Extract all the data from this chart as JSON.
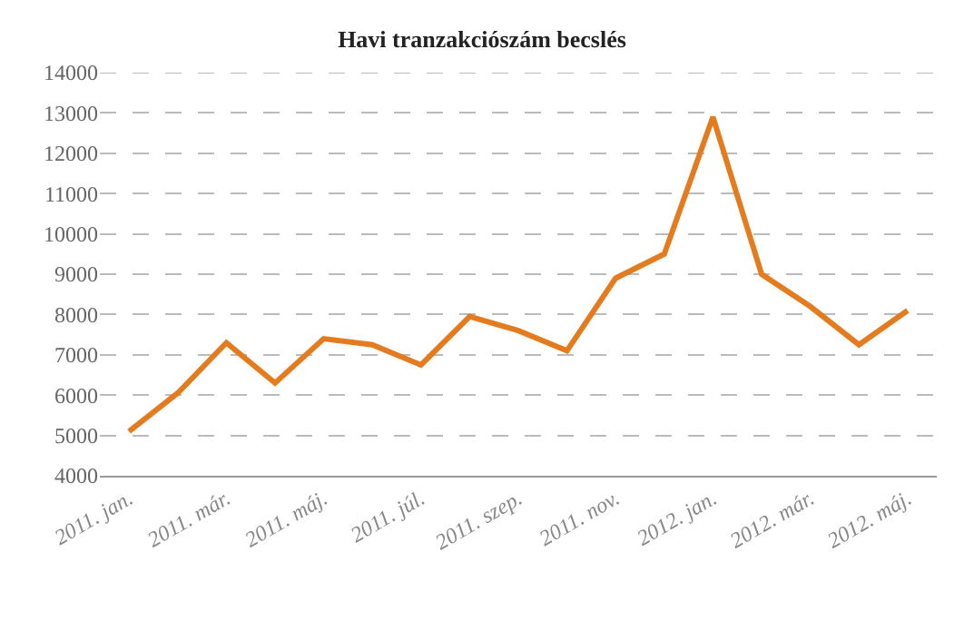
{
  "chart_data": {
    "type": "line",
    "title": "Havi tranzakciószám becslés",
    "categories": [
      "2011. jan.",
      null,
      "2011. már.",
      null,
      "2011. máj.",
      null,
      "2011. júl.",
      null,
      "2011. szep.",
      null,
      "2011. nov.",
      null,
      "2012. jan.",
      null,
      "2012. már.",
      null,
      "2012. máj."
    ],
    "series": [
      {
        "color": "#e47b1e",
        "values": [
          5100,
          6050,
          7300,
          6300,
          7400,
          7250,
          6750,
          7950,
          7600,
          7100,
          8900,
          9500,
          12900,
          9000,
          8200,
          7250,
          8100
        ]
      }
    ],
    "ylim": [
      4000,
      14000
    ],
    "yticks": [
      4000,
      5000,
      6000,
      7000,
      8000,
      9000,
      10000,
      11000,
      12000,
      13000,
      14000
    ],
    "grid": "y",
    "marker": "none",
    "line_style": "solid"
  }
}
